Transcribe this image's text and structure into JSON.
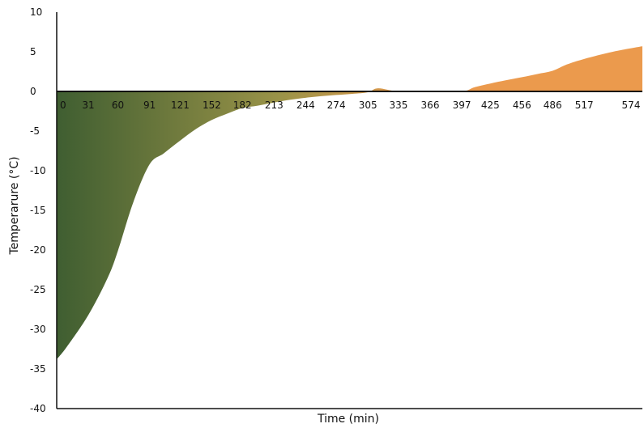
{
  "chart_data": {
    "type": "area",
    "xlabel": "Time (min)",
    "ylabel": "Temperarure (°C)",
    "ylim": [
      -40,
      10
    ],
    "y_ticks": [
      "10",
      "5",
      "0",
      "-5",
      "-10",
      "-15",
      "-20",
      "-25",
      "-30",
      "-35",
      "-40"
    ],
    "x_ticks": [
      "0",
      "31",
      "60",
      "91",
      "121",
      "152",
      "182",
      "213",
      "244",
      "274",
      "305",
      "335",
      "366",
      "397",
      "425",
      "456",
      "486",
      "517",
      "574"
    ],
    "grid": false,
    "colors": {
      "start": "#3f5e31",
      "end": "#eb9a4d",
      "baseline": "#111111"
    },
    "series": [
      {
        "x": [
          0,
          10,
          31,
          50,
          60,
          75,
          91,
          105,
          121,
          137,
          152,
          167,
          182,
          197,
          213,
          229,
          244,
          259,
          274,
          290,
          305,
          315,
          335,
          366,
          397,
          410,
          425,
          440,
          456,
          471,
          486,
          500,
          517,
          545,
          574
        ],
        "y": [
          -33.8,
          -32.2,
          -28.2,
          -23.5,
          -20.1,
          -14.0,
          -9.2,
          -7.8,
          -6.2,
          -4.7,
          -3.6,
          -2.8,
          -2.1,
          -1.8,
          -1.4,
          -1.05,
          -0.8,
          -0.6,
          -0.45,
          -0.3,
          -0.1,
          0.4,
          0,
          0,
          0,
          0.55,
          1.0,
          1.4,
          1.8,
          2.2,
          2.6,
          3.4,
          4.1,
          5.0,
          5.7
        ]
      }
    ]
  }
}
